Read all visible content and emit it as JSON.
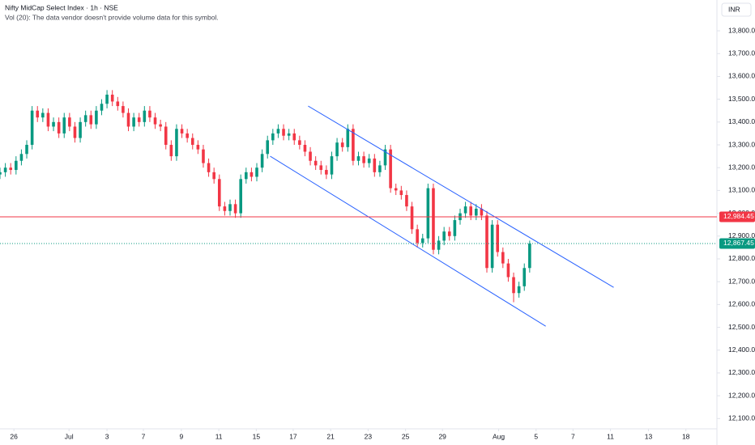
{
  "chart_data": {
    "type": "candlestick",
    "title": "Nifty MidCap Select Index · 1h · NSE",
    "subtitle": "Vol (20): The data vendor doesn't provide volume data for this symbol.",
    "currency": "INR",
    "up_color": "#089981",
    "down_color": "#f23645",
    "grid": false,
    "x": [
      0,
      1,
      2,
      3,
      4,
      5,
      6,
      7,
      8,
      9,
      10,
      11,
      12,
      13,
      14,
      15,
      16,
      17,
      18,
      19,
      20,
      21,
      22,
      23,
      24,
      25,
      26,
      27,
      28,
      29,
      30,
      31,
      32,
      33,
      34,
      35,
      36,
      37,
      38,
      39,
      40,
      41,
      42,
      43,
      44,
      45,
      46,
      47,
      48,
      49,
      50,
      51,
      52,
      53,
      54,
      55,
      56,
      57,
      58,
      59,
      60,
      61,
      62,
      63,
      64,
      65,
      66,
      67,
      68,
      69,
      70,
      71,
      72,
      73,
      74,
      75,
      76,
      77,
      78,
      79,
      80,
      81,
      82,
      83,
      84,
      85,
      86,
      87,
      88,
      89,
      90,
      91,
      92,
      93,
      94,
      95,
      96,
      97,
      98,
      99
    ],
    "open": [
      13170,
      13180,
      13200,
      13190,
      13230,
      13260,
      13300,
      13450,
      13420,
      13440,
      13380,
      13400,
      13350,
      13420,
      13380,
      13330,
      13400,
      13430,
      13390,
      13450,
      13480,
      13520,
      13490,
      13470,
      13440,
      13380,
      13420,
      13400,
      13450,
      13420,
      13390,
      13380,
      13300,
      13250,
      13370,
      13350,
      13330,
      13300,
      13280,
      13220,
      13180,
      13150,
      13030,
      13010,
      13040,
      13000,
      13150,
      13180,
      13160,
      13200,
      13260,
      13320,
      13350,
      13370,
      13340,
      13350,
      13320,
      13300,
      13270,
      13230,
      13210,
      13190,
      13170,
      13250,
      13310,
      13290,
      13370,
      13230,
      13250,
      13220,
      13240,
      13180,
      13210,
      13280,
      13110,
      13100,
      13080,
      13030,
      12930,
      12870,
      12890,
      13110,
      12840,
      12880,
      12920,
      12900,
      12970,
      13000,
      13030,
      12990,
      13020,
      12990,
      12760,
      12950,
      12830,
      12780,
      12720,
      12650,
      12680,
      12760
    ],
    "high": [
      13200,
      13220,
      13220,
      13250,
      13280,
      13320,
      13470,
      13470,
      13460,
      13460,
      13420,
      13420,
      13440,
      13440,
      13400,
      13420,
      13450,
      13450,
      13470,
      13500,
      13540,
      13540,
      13510,
      13490,
      13460,
      13440,
      13440,
      13470,
      13470,
      13440,
      13410,
      13400,
      13320,
      13390,
      13390,
      13370,
      13350,
      13320,
      13300,
      13240,
      13200,
      13170,
      13050,
      13060,
      13060,
      13170,
      13200,
      13200,
      13220,
      13280,
      13340,
      13370,
      13390,
      13390,
      13370,
      13370,
      13340,
      13320,
      13290,
      13250,
      13230,
      13210,
      13270,
      13330,
      13330,
      13390,
      13390,
      13270,
      13270,
      13260,
      13260,
      13230,
      13300,
      13300,
      13130,
      13120,
      13100,
      13050,
      12950,
      12910,
      13130,
      13130,
      12900,
      12940,
      12940,
      12990,
      13020,
      13050,
      13050,
      13040,
      13040,
      13010,
      12970,
      12970,
      12850,
      12800,
      12740,
      12700,
      12780,
      12880
    ],
    "low": [
      13150,
      13160,
      13170,
      13170,
      13210,
      13240,
      13280,
      13400,
      13400,
      13360,
      13360,
      13330,
      13330,
      13360,
      13310,
      13310,
      13380,
      13370,
      13370,
      13430,
      13460,
      13470,
      13450,
      13420,
      13360,
      13360,
      13380,
      13380,
      13400,
      13370,
      13360,
      13280,
      13230,
      13230,
      13330,
      13310,
      13280,
      13260,
      13200,
      13160,
      13130,
      13010,
      12990,
      12990,
      12980,
      12980,
      13130,
      13140,
      13140,
      13180,
      13240,
      13300,
      13330,
      13320,
      13320,
      13300,
      13280,
      13250,
      13210,
      13190,
      13170,
      13150,
      13150,
      13230,
      13270,
      13270,
      13210,
      13210,
      13200,
      13200,
      13160,
      13160,
      13190,
      13090,
      13080,
      13060,
      13010,
      12910,
      12850,
      12850,
      12870,
      12820,
      12820,
      12860,
      12880,
      12880,
      12950,
      12980,
      12970,
      12970,
      12970,
      12740,
      12740,
      12810,
      12760,
      12700,
      12610,
      12630,
      12660,
      12740
    ],
    "close": [
      13180,
      13200,
      13190,
      13230,
      13260,
      13300,
      13450,
      13420,
      13440,
      13380,
      13400,
      13350,
      13420,
      13380,
      13330,
      13400,
      13430,
      13390,
      13450,
      13480,
      13520,
      13490,
      13470,
      13440,
      13380,
      13420,
      13400,
      13450,
      13420,
      13390,
      13380,
      13300,
      13250,
      13370,
      13350,
      13330,
      13300,
      13280,
      13220,
      13180,
      13150,
      13030,
      13010,
      13040,
      13000,
      13150,
      13180,
      13160,
      13200,
      13260,
      13320,
      13350,
      13370,
      13340,
      13350,
      13320,
      13300,
      13270,
      13230,
      13210,
      13190,
      13170,
      13250,
      13310,
      13290,
      13370,
      13230,
      13250,
      13220,
      13240,
      13180,
      13210,
      13280,
      13110,
      13100,
      13080,
      13030,
      12930,
      12870,
      12890,
      13110,
      12840,
      12880,
      12920,
      12900,
      12970,
      13000,
      13030,
      12990,
      13020,
      12990,
      12760,
      12950,
      12830,
      12780,
      12720,
      12650,
      12680,
      12760,
      12867
    ],
    "xlim": [
      0,
      134
    ],
    "xticks": [
      {
        "value": 2.6,
        "label": "26"
      },
      {
        "value": 12.9,
        "label": "Jul"
      },
      {
        "value": 20,
        "label": "3"
      },
      {
        "value": 26.8,
        "label": "7"
      },
      {
        "value": 33.9,
        "label": "9"
      },
      {
        "value": 40.9,
        "label": "11"
      },
      {
        "value": 47.9,
        "label": "15"
      },
      {
        "value": 54.8,
        "label": "17"
      },
      {
        "value": 61.8,
        "label": "21"
      },
      {
        "value": 68.8,
        "label": "23"
      },
      {
        "value": 75.8,
        "label": "25"
      },
      {
        "value": 82.7,
        "label": "29"
      },
      {
        "value": 93.2,
        "label": "Aug"
      },
      {
        "value": 100.2,
        "label": "5"
      },
      {
        "value": 107.1,
        "label": "7"
      },
      {
        "value": 114.1,
        "label": "11"
      },
      {
        "value": 121.2,
        "label": "13"
      },
      {
        "value": 128.2,
        "label": "18"
      }
    ],
    "ylim": [
      12055,
      13935
    ],
    "yticks": [
      {
        "value": 13800,
        "label": "13,800.00"
      },
      {
        "value": 13700,
        "label": "13,700.00"
      },
      {
        "value": 13600,
        "label": "13,600.00"
      },
      {
        "value": 13500,
        "label": "13,500.00"
      },
      {
        "value": 13400,
        "label": "13,400.00"
      },
      {
        "value": 13300,
        "label": "13,300.00"
      },
      {
        "value": 13200,
        "label": "13,200.00"
      },
      {
        "value": 13100,
        "label": "13,100.00"
      },
      {
        "value": 13000,
        "label": "13,000.00"
      },
      {
        "value": 12900,
        "label": "12,900.00"
      },
      {
        "value": 12800,
        "label": "12,800.00"
      },
      {
        "value": 12700,
        "label": "12,700.00"
      },
      {
        "value": 12600,
        "label": "12,600.00"
      },
      {
        "value": 12500,
        "label": "12,500.00"
      },
      {
        "value": 12400,
        "label": "12,400.00"
      },
      {
        "value": 12300,
        "label": "12,300.00"
      },
      {
        "value": 12200,
        "label": "12,200.00"
      },
      {
        "value": 12100,
        "label": "12,100.00"
      }
    ],
    "trend_lines": [
      {
        "color": "#2962ff",
        "x": [
          57.6,
          114.7
        ],
        "y": [
          13470,
          12675
        ]
      },
      {
        "color": "#2962ff",
        "x": [
          50.5,
          102
        ],
        "y": [
          13250,
          12505
        ]
      }
    ],
    "price_lines": [
      {
        "value": 12984.45,
        "label": "12,984.45",
        "color": "#f23645",
        "style": "solid"
      },
      {
        "value": 12867.45,
        "label": "12,867.45",
        "color": "#089981",
        "style": "dotted"
      }
    ]
  }
}
